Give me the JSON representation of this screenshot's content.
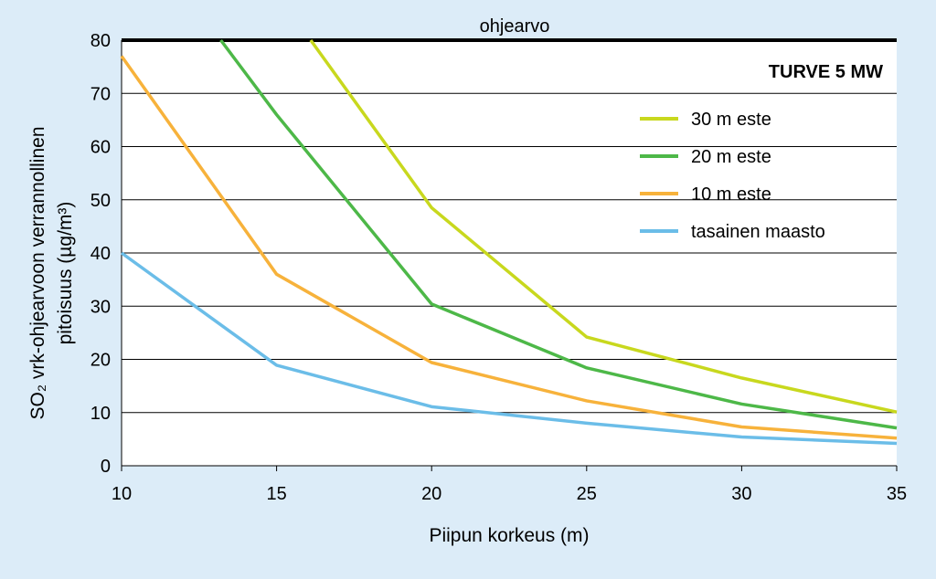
{
  "colors": {
    "background": "#dcecf8",
    "plot_bg": "#ffffff",
    "grid": "#000000"
  },
  "chart_data": {
    "type": "line",
    "title": "TURVE  5 MW",
    "xlabel": "Piipun korkeus (m)",
    "ylabel_line1": "SO₂ vrk-ohjearvoon  verrannollinen",
    "ylabel_line2": "pitoisuus (µg/m³)",
    "xlim": [
      10,
      35
    ],
    "ylim": [
      0,
      80
    ],
    "xticks": [
      "10",
      "15",
      "20",
      "25",
      "30",
      "35"
    ],
    "yticks": [
      "0",
      "10",
      "20",
      "30",
      "40",
      "50",
      "60",
      "70",
      "80"
    ],
    "grid": "horizontal",
    "legend_position": "right",
    "reference_line": {
      "label": "ohjearvo",
      "value": 80,
      "color": "#000000"
    },
    "series": [
      {
        "name": "30 m este",
        "color": "#c8d81e",
        "x": [
          16.1,
          20,
          25,
          30,
          35
        ],
        "y": [
          80,
          48.5,
          24.2,
          16.5,
          10.1
        ]
      },
      {
        "name": "20 m este",
        "color": "#4db848",
        "x": [
          13.2,
          15,
          20,
          25,
          30,
          35
        ],
        "y": [
          80,
          66,
          30.4,
          18.4,
          11.6,
          7.1
        ]
      },
      {
        "name": "10 m este",
        "color": "#f7b23b",
        "x": [
          10,
          15,
          20,
          25,
          30,
          35
        ],
        "y": [
          77,
          36,
          19.4,
          12.2,
          7.3,
          5.2
        ]
      },
      {
        "name": "tasainen maasto",
        "color": "#6bbde8",
        "x": [
          10,
          15,
          20,
          25,
          30,
          35
        ],
        "y": [
          40,
          18.9,
          11.1,
          8,
          5.4,
          4.2
        ]
      }
    ]
  }
}
